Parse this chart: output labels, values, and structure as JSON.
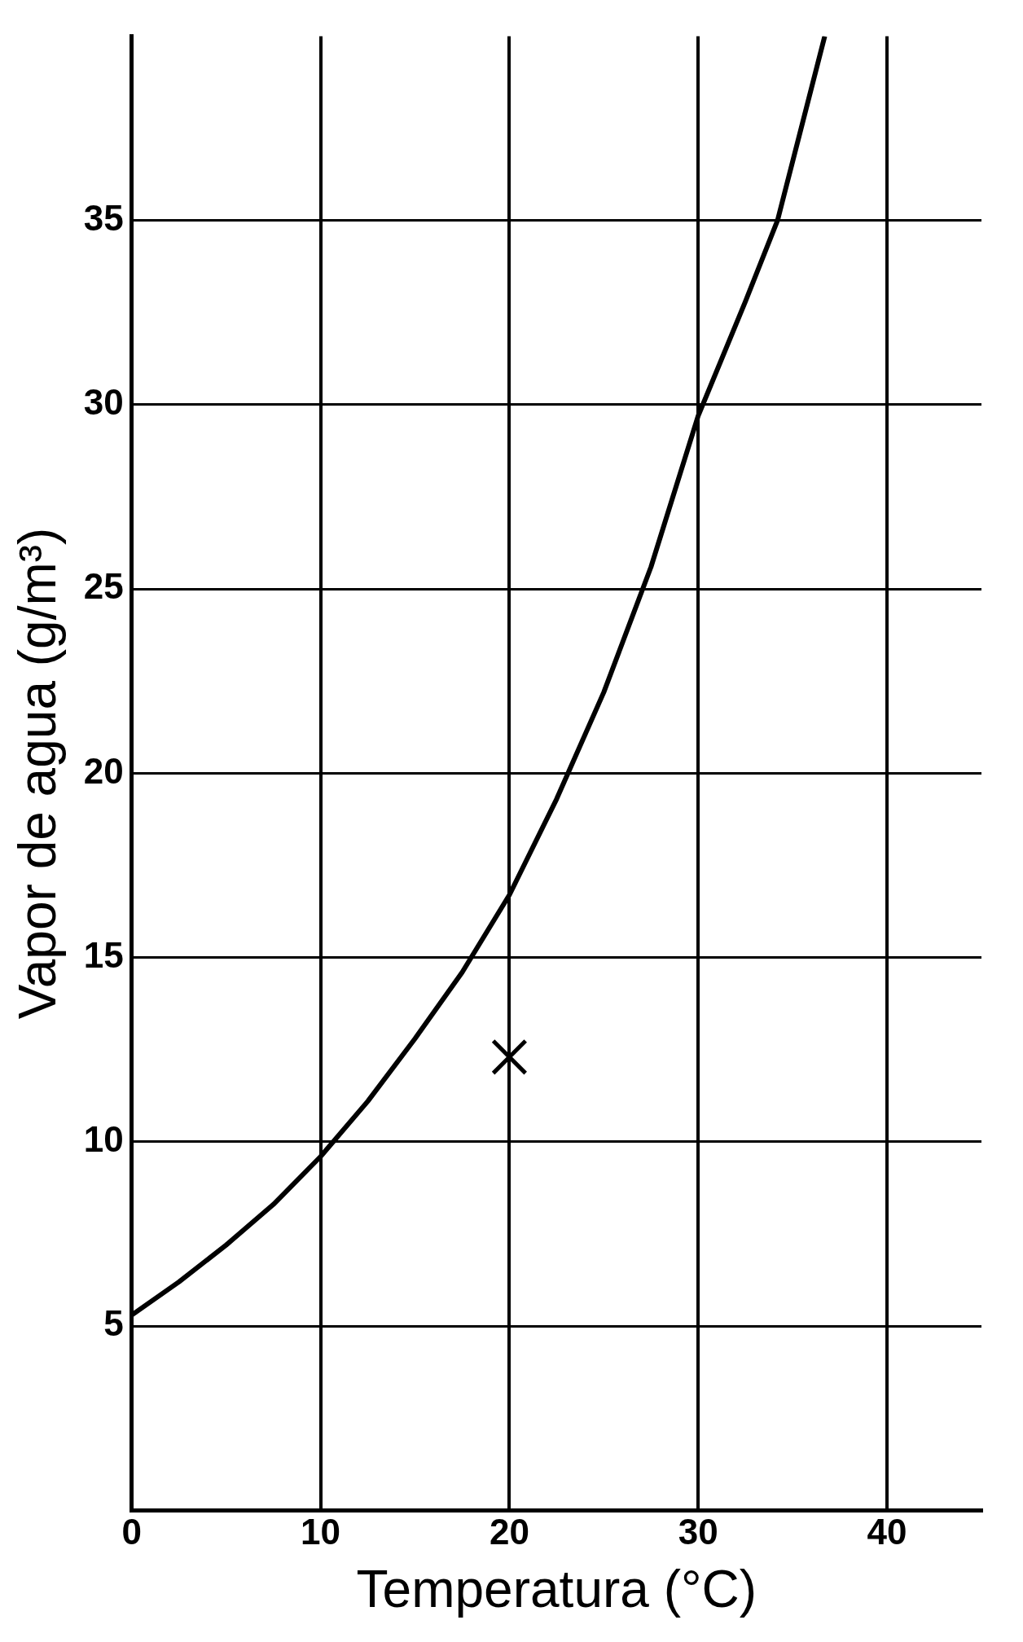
{
  "chart_data": {
    "type": "line",
    "xlabel": "Temperatura (°C)",
    "ylabel": "Vapor de agua (g/m³)",
    "xlim": [
      0,
      45
    ],
    "xticks": [
      0,
      10,
      20,
      30,
      40
    ],
    "ylim": [
      0,
      40
    ],
    "yticks": [
      5,
      10,
      15,
      20,
      25,
      30,
      35
    ],
    "grid": true,
    "legend": false,
    "series": [
      {
        "color": "#000000",
        "marker": "none",
        "x": [
          0,
          2.5,
          5,
          7.5,
          10,
          12.5,
          15,
          17.5,
          20,
          22.5,
          25,
          27.5,
          30,
          32.5,
          34.2,
          36.7
        ],
        "values": [
          5.3,
          6.2,
          7.2,
          8.3,
          9.6,
          11.1,
          12.8,
          14.6,
          16.7,
          19.3,
          22.2,
          25.6,
          29.7,
          32.8,
          35,
          40
        ]
      },
      {
        "type": "scatter",
        "color": "#000000",
        "marker": "cross",
        "x": [
          20
        ],
        "values": [
          12.3
        ]
      }
    ]
  }
}
